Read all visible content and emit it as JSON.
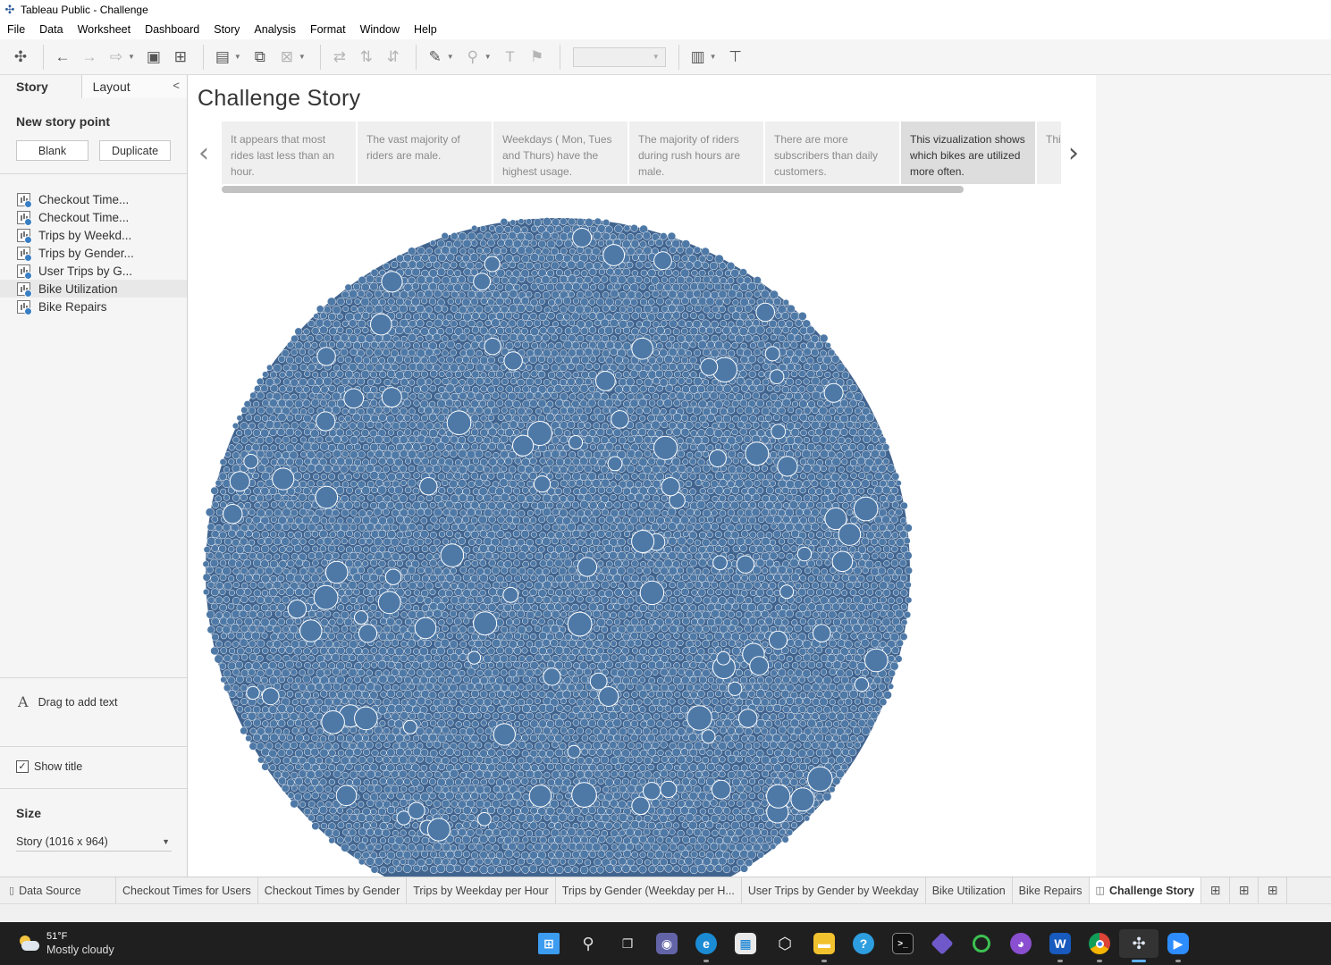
{
  "window": {
    "title": "Tableau Public - Challenge"
  },
  "menu": [
    "File",
    "Data",
    "Worksheet",
    "Dashboard",
    "Story",
    "Analysis",
    "Format",
    "Window",
    "Help"
  ],
  "left_panel": {
    "tabs": {
      "story": "Story",
      "layout": "Layout"
    },
    "new_story_point": "New story point",
    "blank_label": "Blank",
    "duplicate_label": "Duplicate",
    "sheets": [
      "Checkout Time...",
      "Checkout Time...",
      "Trips by Weekd...",
      "Trips by Gender...",
      "User Trips by G...",
      "Bike Utilization",
      "Bike Repairs"
    ],
    "drag_to_add_text": "Drag to add text",
    "show_title": "Show title",
    "size_title": "Size",
    "size_value": "Story (1016 x 964)"
  },
  "story": {
    "title": "Challenge Story",
    "points": [
      "It appears that most rides last less than an hour.",
      "The vast majority of riders are male.",
      "Weekdays ( Mon, Tues and Thurs) have the highest usage.",
      "The majority of riders during rush hours are male.",
      "There are more subscribers than daily customers.",
      "This vizualization shows which bikes are utilized more often.",
      "This bike needs"
    ],
    "active_point": 5,
    "bubble_color": "#4e79a7"
  },
  "sheet_tabs": {
    "data_source": "Data Source",
    "tabs": [
      "Checkout Times for Users",
      "Checkout Times by Gender",
      "Trips by Weekday per Hour",
      "Trips by Gender (Weekday per H...",
      "User Trips by Gender by Weekday",
      "Bike Utilization",
      "Bike Repairs"
    ],
    "active": "Challenge Story"
  },
  "taskbar": {
    "temperature": "51°F",
    "weather": "Mostly cloudy",
    "apps": [
      "windows-start-icon",
      "search-icon",
      "task-view-icon",
      "teams-chat-icon",
      "edge-icon",
      "store-icon",
      "github-desktop-icon",
      "file-explorer-icon",
      "help-icon",
      "terminal-icon",
      "git-icon",
      "circle-app-icon",
      "github-icon",
      "word-icon",
      "chrome-icon",
      "tableau-icon",
      "zoom-icon"
    ]
  }
}
